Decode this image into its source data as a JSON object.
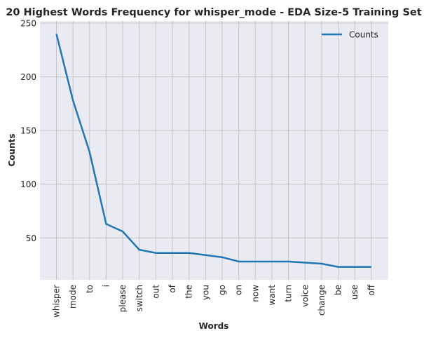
{
  "chart_data": {
    "type": "line",
    "title": "20 Highest Words Frequency for whisper_mode - EDA Size-5 Training Set",
    "xlabel": "Words",
    "ylabel": "Counts",
    "categories": [
      "whisper",
      "mode",
      "to",
      "i",
      "please",
      "switch",
      "out",
      "of",
      "the",
      "you",
      "go",
      "on",
      "now",
      "want",
      "turn",
      "voice",
      "change",
      "be",
      "use",
      "off"
    ],
    "series": [
      {
        "name": "Counts",
        "values": [
          240,
          178,
          130,
          63,
          56,
          39,
          36,
          36,
          36,
          34,
          32,
          28,
          28,
          28,
          28,
          27,
          26,
          23,
          23,
          23
        ],
        "color": "#1f77b4"
      }
    ],
    "ylim": [
      11,
      252
    ],
    "yticks": [
      50,
      100,
      150,
      200,
      250
    ],
    "grid": true,
    "legend": "top-right",
    "background": "#eaeaf2",
    "grid_color": "#c4c4c8"
  }
}
